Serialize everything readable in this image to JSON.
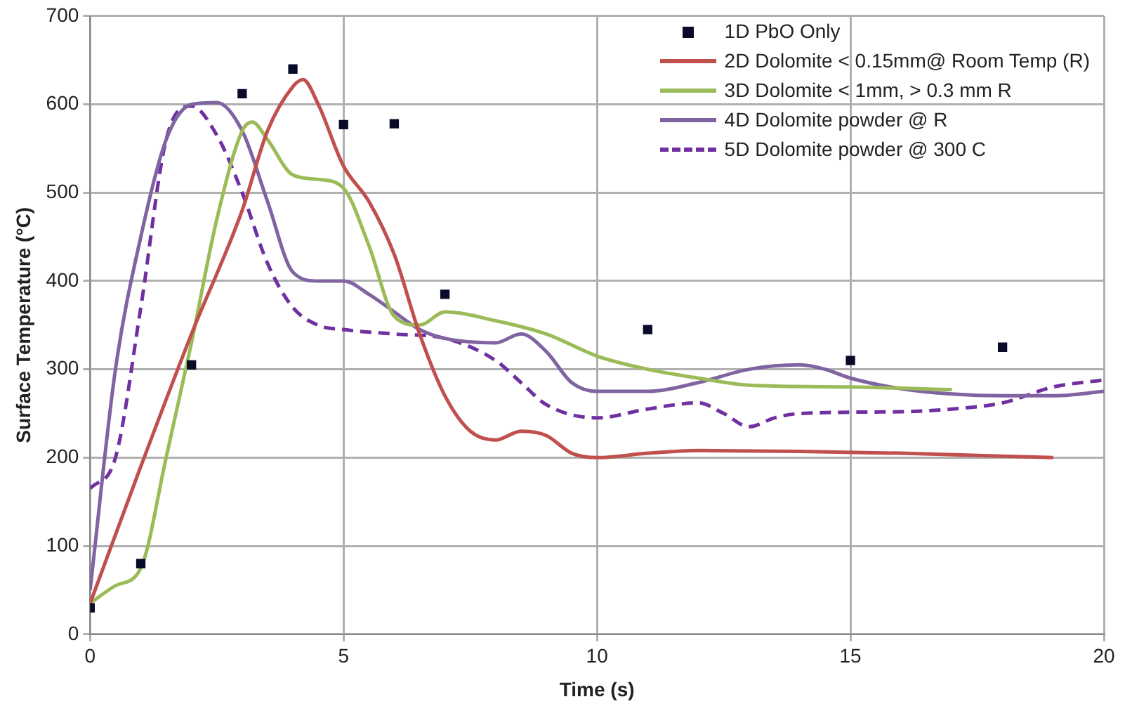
{
  "chart_data": {
    "type": "line",
    "xlabel": "Time (s)",
    "ylabel": "Surface Temperature (°C)",
    "xlim": [
      0,
      20
    ],
    "xticks": [
      0,
      5,
      10,
      15,
      20
    ],
    "ylim": [
      0,
      700
    ],
    "yticks": [
      0,
      100,
      200,
      300,
      400,
      500,
      600,
      700
    ],
    "grid": true,
    "legend": "top right",
    "series": [
      {
        "name": "1D PbO Only",
        "type": "scatter",
        "marker": "square",
        "color": "#0a0a2a",
        "x": [
          0,
          1,
          2,
          3,
          4,
          5,
          6,
          7,
          11,
          15,
          18
        ],
        "values": [
          30,
          80,
          305,
          612,
          640,
          577,
          578,
          385,
          345,
          310,
          325
        ]
      },
      {
        "name": "2D Dolomite < 0.15mm@ Room Temp (R)",
        "color": "#c0504d",
        "line_style": "solid",
        "x": [
          0,
          1,
          2,
          3,
          3.5,
          4,
          4.2,
          4.5,
          5,
          5.5,
          6,
          6.5,
          7,
          7.5,
          8,
          8.5,
          9,
          9.5,
          10,
          11,
          12,
          14,
          16,
          19
        ],
        "values": [
          35,
          190,
          340,
          480,
          570,
          620,
          628,
          600,
          530,
          490,
          430,
          340,
          270,
          230,
          220,
          230,
          225,
          205,
          200,
          205,
          208,
          207,
          205,
          200
        ]
      },
      {
        "name": "3D Dolomite < 1mm, > 0.3 mm R",
        "color": "#9bbb59",
        "line_style": "solid",
        "x": [
          0,
          0.5,
          1,
          1.5,
          2,
          2.5,
          3,
          3.2,
          3.5,
          4,
          4.5,
          5,
          5.5,
          6,
          6.5,
          7,
          8,
          9,
          10,
          11,
          12,
          13,
          15,
          17
        ],
        "values": [
          35,
          55,
          75,
          200,
          330,
          470,
          570,
          580,
          560,
          520,
          515,
          505,
          440,
          360,
          350,
          365,
          355,
          340,
          315,
          300,
          290,
          282,
          280,
          277
        ]
      },
      {
        "name": "4D Dolomite powder @ R",
        "color": "#8064a2",
        "line_style": "solid",
        "x": [
          0,
          0.5,
          1,
          1.5,
          2,
          2.5,
          3,
          3.5,
          4,
          4.5,
          5,
          5.5,
          6,
          6.5,
          7,
          8,
          8.5,
          9,
          9.5,
          10,
          11,
          12,
          13,
          14,
          14.5,
          15,
          16,
          17,
          18,
          19,
          20
        ],
        "values": [
          50,
          300,
          450,
          560,
          600,
          602,
          570,
          490,
          410,
          400,
          400,
          385,
          365,
          345,
          335,
          330,
          340,
          320,
          285,
          275,
          275,
          285,
          300,
          305,
          300,
          290,
          278,
          272,
          270,
          270,
          275
        ]
      },
      {
        "name": "5D Dolomite powder @ 300 C",
        "color": "#7030a0",
        "line_style": "dashed",
        "x": [
          0,
          0.5,
          1,
          1.5,
          2,
          2.5,
          3,
          3.5,
          4,
          4.5,
          5,
          6,
          7,
          8,
          8.5,
          9,
          10,
          11,
          12,
          12.5,
          13,
          13.5,
          14,
          16,
          17,
          18,
          19,
          20
        ],
        "values": [
          165,
          200,
          370,
          560,
          598,
          565,
          500,
          420,
          370,
          350,
          345,
          340,
          335,
          310,
          285,
          260,
          245,
          255,
          262,
          250,
          235,
          245,
          250,
          252,
          255,
          262,
          280,
          288
        ]
      }
    ]
  }
}
